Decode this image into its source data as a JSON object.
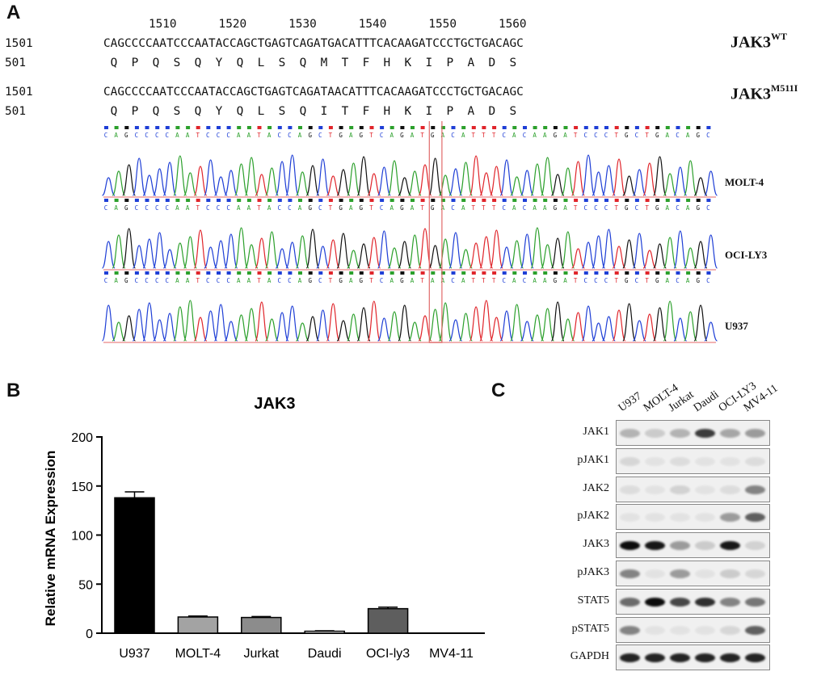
{
  "panel_a": {
    "letter": "A",
    "ruler": [
      "1510",
      "1520",
      "1530",
      "1540",
      "1550",
      "1560"
    ],
    "wt": {
      "nt_pos": "1501",
      "nt_seq": "CAGCCCCAATCCCAATACCAGCTGAGTCAGATGACATTTCACAAGATCCCTGCTGACAGC",
      "aa_pos": "501",
      "aa_seq": " Q  P  Q  S  Q  Y  Q  L  S  Q  M  T  F  H  K  I  P  A  D  S",
      "label": "JAK3",
      "label_sup": "WT"
    },
    "mut": {
      "nt_pos": "1501",
      "nt_seq": "CAGCCCCAATCCCAATACCAGCTGAGTCAGATAACATTTCACAAGATCCCTGCTGACAGC",
      "aa_pos": "501",
      "aa_seq": " Q  P  Q  S  Q  Y  Q  L  S  Q  I  T  F  H  K  I  P  A  D  S",
      "label": "JAK3",
      "label_sup": "M511I"
    },
    "traces": [
      {
        "name": "MOLT-4",
        "seq": "CAGCCCCAATCCCAATACCAGCTGAGTCAGATGACATTTCACAAGATCCCTGCTGACAGC"
      },
      {
        "name": "OCI-LY3",
        "seq": "CAGCCCCAATCCCAATACCAGCTGAGTCAGATGACATTTCACAAGATCCCTGCTGACAGC"
      },
      {
        "name": "U937",
        "seq": "CAGCCCCAATCCCAATACCAGCTGAGTCAGATAACATTTCACAAGATCCCTGCTGACAGC"
      }
    ],
    "base_colors": {
      "A": "#2ca02c",
      "C": "#1f3fd6",
      "G": "#111111",
      "T": "#e0252b"
    }
  },
  "panel_b": {
    "letter": "B",
    "chart_data": {
      "type": "bar",
      "title": "JAK3",
      "ylabel": "Relative mRNA Expression",
      "xlabel": "",
      "categories": [
        "U937",
        "MOLT-4",
        "Jurkat",
        "Daudi",
        "OCI-ly3",
        "MV4-11"
      ],
      "values": [
        138,
        16.5,
        16,
        2,
        25,
        0
      ],
      "errors": [
        6,
        1,
        1,
        0.5,
        1.5,
        0
      ],
      "colors": [
        "#000000",
        "#a3a3a3",
        "#8c8c8c",
        "#ffffff",
        "#5e5e5e",
        "#ffffff"
      ],
      "ylim": [
        0,
        200
      ],
      "yticks": [
        0,
        50,
        100,
        150,
        200
      ]
    }
  },
  "panel_c": {
    "letter": "C",
    "lanes": [
      "U937",
      "MOLT-4",
      "Jurkat",
      "Daudi",
      "OCI-LY3",
      "MV4-11"
    ],
    "blots": [
      {
        "label": "JAK1",
        "intensity": [
          0.25,
          0.15,
          0.25,
          0.75,
          0.3,
          0.35
        ]
      },
      {
        "label": "pJAK1",
        "intensity": [
          0.1,
          0.05,
          0.08,
          0.05,
          0.05,
          0.08
        ]
      },
      {
        "label": "JAK2",
        "intensity": [
          0.08,
          0.05,
          0.12,
          0.05,
          0.08,
          0.45
        ]
      },
      {
        "label": "pJAK2",
        "intensity": [
          0.05,
          0.05,
          0.05,
          0.05,
          0.35,
          0.6
        ]
      },
      {
        "label": "JAK3",
        "intensity": [
          0.95,
          0.9,
          0.35,
          0.15,
          0.9,
          0.12
        ]
      },
      {
        "label": "pJAK3",
        "intensity": [
          0.45,
          0.05,
          0.35,
          0.05,
          0.15,
          0.1
        ]
      },
      {
        "label": "STAT5",
        "intensity": [
          0.55,
          0.95,
          0.7,
          0.8,
          0.45,
          0.5
        ]
      },
      {
        "label": "pSTAT5",
        "intensity": [
          0.45,
          0.05,
          0.05,
          0.05,
          0.1,
          0.6
        ]
      },
      {
        "label": "GAPDH",
        "intensity": [
          0.85,
          0.85,
          0.85,
          0.85,
          0.85,
          0.85
        ]
      }
    ]
  }
}
